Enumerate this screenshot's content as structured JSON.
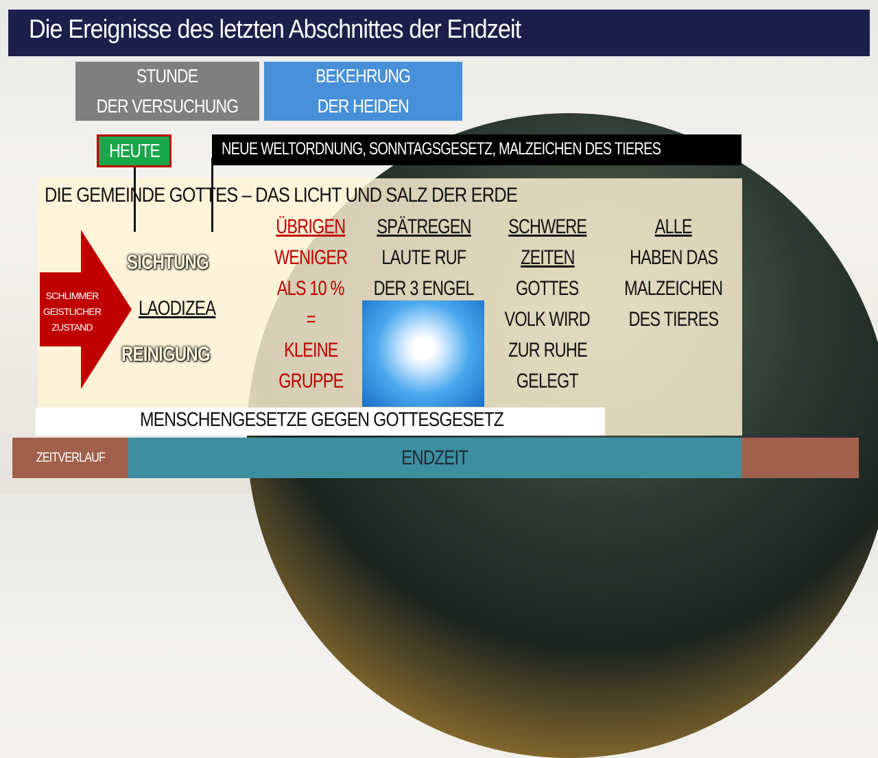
{
  "title": "Die Ereignisse des letzten Abschnittes der Endzeit",
  "boxes": {
    "versuchung": [
      "STUNDE",
      "DER VERSUCHUNG"
    ],
    "bekehrung": [
      "BEKEHRUNG",
      "DER HEIDEN"
    ]
  },
  "heute": "HEUTE",
  "event_bar": "NEUE WELTORDNUNG, SONNTAGSGESETZ, MALZEICHEN DES TIERES",
  "panel_heading": "DIE GEMEINDE GOTTES – DAS LICHT UND SALZ DER ERDE",
  "arrow_text": [
    "SCHLIMMER",
    "GEISTLICHER",
    "ZUSTAND"
  ],
  "state": {
    "top": "SICHTUNG",
    "middle": "LAODIZEA",
    "bottom": "REINIGUNG"
  },
  "columns": {
    "uebrigen": [
      "ÜBRIGEN",
      "WENIGER",
      "ALS 10 %",
      "=",
      "KLEINE",
      "GRUPPE"
    ],
    "spaetregen": [
      "SPÄTREGEN",
      "LAUTE RUF",
      "DER 3 ENGEL"
    ],
    "schwere": [
      "SCHWERE",
      "ZEITEN",
      "GOTTES",
      "VOLK WIRD",
      "ZUR RUHE",
      "GELEGT"
    ],
    "alle": [
      "ALLE",
      "HABEN DAS",
      "MALZEICHEN",
      "DES TIERES"
    ]
  },
  "law_bar": "MENSCHENGESETZE GEGEN GOTTESGESETZ",
  "timeline": {
    "label": "ZEITVERLAUF",
    "endzeit": "ENDZEIT"
  },
  "colors": {
    "title_bg": "#1c1f4a",
    "gray": "#7f7f7f",
    "blue": "#4a90d9",
    "green": "#1aa64a",
    "red": "#c00000",
    "teal": "#3d8fa0",
    "brown": "#a0604c"
  }
}
